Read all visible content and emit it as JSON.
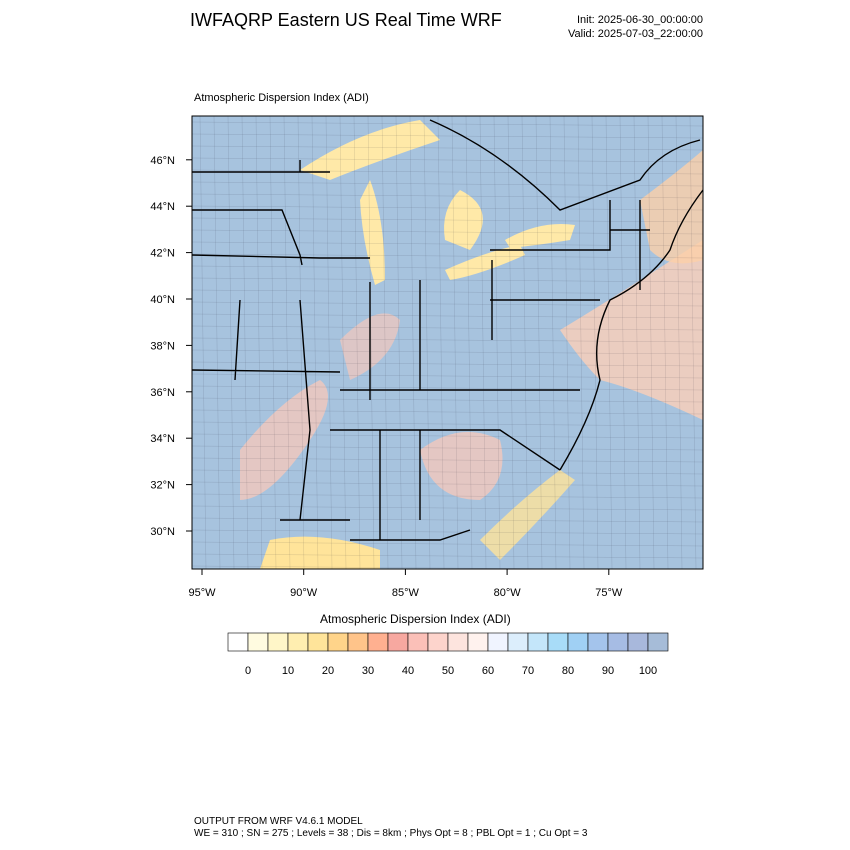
{
  "header": {
    "title": "IWFAQRP Eastern US Real Time WRF",
    "init": "Init: 2025-06-30_00:00:00",
    "valid": "Valid: 2025-07-03_22:00:00"
  },
  "map": {
    "subtitle": "Atmospheric Dispersion Index   (ADI)",
    "lat_labels": [
      "30°N",
      "32°N",
      "34°N",
      "36°N",
      "38°N",
      "40°N",
      "42°N",
      "44°N",
      "46°N"
    ],
    "lon_labels": [
      "95°W",
      "90°W",
      "85°W",
      "80°W",
      "75°W"
    ]
  },
  "colorbar": {
    "title": "Atmospheric Dispersion Index  (ADI)",
    "ticks": [
      0,
      10,
      20,
      30,
      40,
      50,
      60,
      70,
      80,
      90,
      100
    ],
    "colors": [
      "#ffffff",
      "#fffbe0",
      "#fff6c8",
      "#ffeeb0",
      "#ffe49a",
      "#ffd48a",
      "#ffc48a",
      "#ffb090",
      "#f7a8a0",
      "#fbc0b8",
      "#fdd4cc",
      "#fde4de",
      "#fff2ee",
      "#f0f4ff",
      "#dceefc",
      "#c4e6fa",
      "#a8dcf8",
      "#a0d0f4",
      "#a4c4ec",
      "#a6bce4",
      "#a8b8dc",
      "#a6bcd8"
    ]
  },
  "footer": {
    "line1": "OUTPUT FROM WRF V4.6.1 MODEL",
    "line2": "WE = 310 ; SN = 275 ; Levels = 38 ; Dis = 8km ; Phys Opt = 8 ; PBL Opt = 1 ; Cu Opt = 3"
  }
}
